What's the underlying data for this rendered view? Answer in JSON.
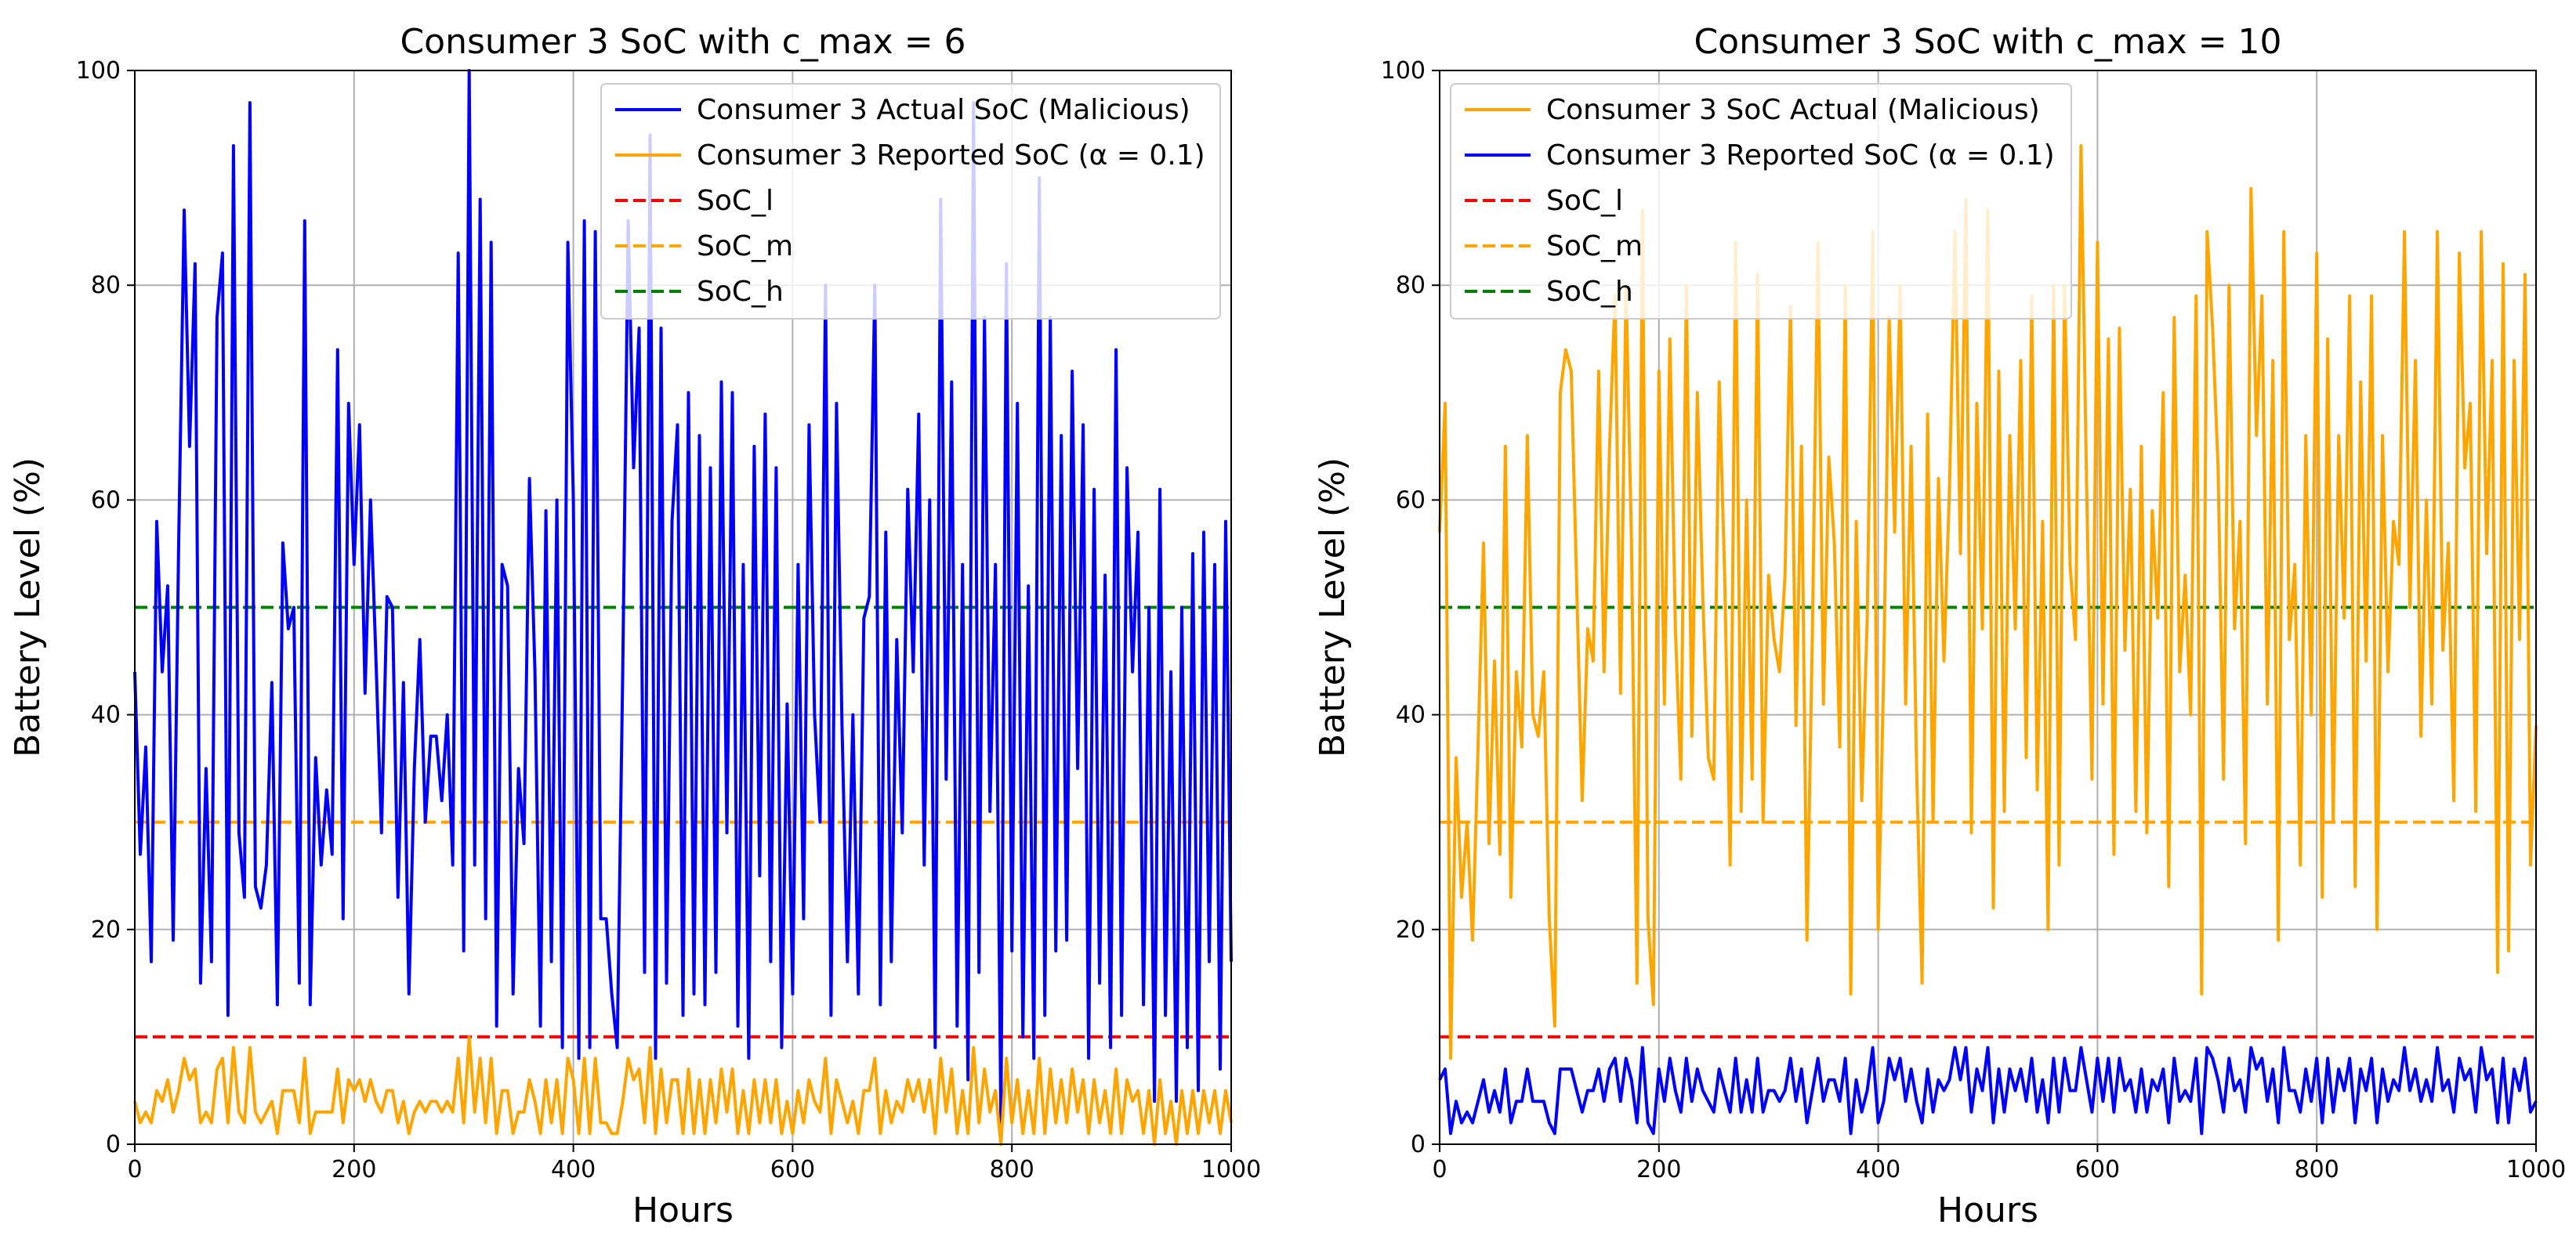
{
  "chart_data": [
    {
      "type": "line",
      "title": "Consumer 3 SoC with c_max = 6",
      "xlabel": "Hours",
      "ylabel": "Battery Level (%)",
      "xlim": [
        0,
        1000
      ],
      "ylim": [
        0,
        100
      ],
      "xticks": [
        0,
        200,
        400,
        600,
        800,
        1000
      ],
      "yticks": [
        0,
        20,
        40,
        60,
        80,
        100
      ],
      "grid": true,
      "legend_position": "top-right",
      "series": [
        {
          "name": "Consumer 3 Actual SoC (Malicious)",
          "color": "#0000ff",
          "style": "solid",
          "x_step": 5,
          "values": [
            44,
            27,
            37,
            17,
            58,
            44,
            52,
            19,
            56,
            87,
            65,
            82,
            15,
            35,
            17,
            77,
            83,
            12,
            93,
            29,
            23,
            97,
            24,
            22,
            26,
            43,
            13,
            56,
            48,
            50,
            15,
            86,
            13,
            36,
            26,
            33,
            27,
            74,
            21,
            69,
            54,
            67,
            42,
            60,
            45,
            29,
            51,
            50,
            23,
            43,
            14,
            35,
            47,
            30,
            38,
            38,
            32,
            40,
            26,
            83,
            18,
            100,
            26,
            88,
            21,
            84,
            11,
            54,
            52,
            14,
            35,
            28,
            62,
            44,
            11,
            59,
            17,
            60,
            9,
            84,
            60,
            8,
            86,
            9,
            85,
            21,
            21,
            14,
            9,
            44,
            86,
            63,
            76,
            16,
            94,
            8,
            76,
            15,
            58,
            67,
            12,
            70,
            14,
            66,
            13,
            63,
            16,
            71,
            29,
            70,
            11,
            54,
            8,
            65,
            25,
            68,
            17,
            63,
            9,
            41,
            14,
            54,
            21,
            67,
            40,
            30,
            80,
            12,
            69,
            39,
            17,
            40,
            14,
            49,
            51,
            80,
            13,
            57,
            17,
            47,
            29,
            61,
            44,
            68,
            26,
            60,
            9,
            88,
            34,
            71,
            11,
            54,
            6,
            97,
            16,
            77,
            31,
            54,
            2,
            82,
            18,
            69,
            10,
            52,
            8,
            90,
            12,
            77,
            18,
            66,
            19,
            72,
            35,
            67,
            8,
            61,
            15,
            53,
            9,
            74,
            12,
            63,
            44,
            57,
            13,
            50,
            4,
            61,
            12,
            44,
            4,
            50,
            9,
            55,
            5,
            57,
            17,
            54,
            7,
            58,
            17
          ]
        },
        {
          "name": "Consumer 3 Reported SoC (α = 0.1)",
          "color": "#ffa500",
          "style": "solid",
          "x_step": 5,
          "values": [
            4,
            2,
            3,
            2,
            5,
            4,
            6,
            3,
            5,
            8,
            6,
            7,
            2,
            3,
            2,
            7,
            8,
            2,
            9,
            3,
            2,
            9,
            3,
            2,
            3,
            4,
            1,
            5,
            5,
            5,
            2,
            8,
            1,
            3,
            3,
            3,
            3,
            7,
            2,
            6,
            5,
            6,
            4,
            6,
            4,
            3,
            5,
            5,
            2,
            4,
            1,
            3,
            4,
            3,
            4,
            4,
            3,
            4,
            3,
            8,
            2,
            10,
            3,
            8,
            2,
            8,
            1,
            5,
            5,
            1,
            3,
            3,
            6,
            4,
            1,
            6,
            2,
            6,
            1,
            8,
            6,
            1,
            8,
            1,
            8,
            2,
            2,
            1,
            1,
            4,
            8,
            6,
            7,
            2,
            9,
            1,
            7,
            2,
            6,
            6,
            1,
            7,
            1,
            6,
            1,
            6,
            2,
            7,
            3,
            7,
            1,
            5,
            1,
            6,
            2,
            6,
            2,
            6,
            1,
            4,
            1,
            5,
            2,
            6,
            4,
            3,
            8,
            1,
            6,
            4,
            2,
            4,
            1,
            5,
            5,
            8,
            1,
            5,
            2,
            4,
            3,
            6,
            4,
            6,
            3,
            6,
            1,
            8,
            3,
            7,
            1,
            5,
            1,
            9,
            2,
            7,
            3,
            5,
            0,
            8,
            2,
            6,
            1,
            5,
            1,
            8,
            1,
            7,
            2,
            6,
            2,
            7,
            3,
            6,
            1,
            6,
            2,
            5,
            1,
            7,
            1,
            6,
            4,
            5,
            1,
            5,
            0,
            6,
            1,
            4,
            0,
            5,
            1,
            5,
            1,
            5,
            2,
            5,
            1,
            5,
            2
          ]
        },
        {
          "name": "SoC_l",
          "color": "#ff0000",
          "style": "dashed",
          "constant": 10
        },
        {
          "name": "SoC_m",
          "color": "#ffa500",
          "style": "dashed",
          "constant": 30
        },
        {
          "name": "SoC_h",
          "color": "#008000",
          "style": "dashed",
          "constant": 50
        }
      ]
    },
    {
      "type": "line",
      "title": "Consumer 3 SoC with c_max = 10",
      "xlabel": "Hours",
      "ylabel": "Battery Level (%)",
      "xlim": [
        0,
        1000
      ],
      "ylim": [
        0,
        100
      ],
      "xticks": [
        0,
        200,
        400,
        600,
        800,
        1000
      ],
      "yticks": [
        0,
        20,
        40,
        60,
        80,
        100
      ],
      "grid": true,
      "legend_position": "top-left",
      "series": [
        {
          "name": "Consumer 3 SoC Actual (Malicious)",
          "color": "#ffa500",
          "style": "solid",
          "x_step": 5,
          "values": [
            57,
            69,
            8,
            36,
            23,
            30,
            19,
            37,
            56,
            28,
            45,
            27,
            65,
            23,
            44,
            37,
            66,
            40,
            38,
            44,
            21,
            11,
            70,
            74,
            72,
            52,
            32,
            48,
            45,
            72,
            44,
            65,
            79,
            42,
            80,
            56,
            15,
            87,
            21,
            13,
            72,
            41,
            75,
            48,
            34,
            80,
            38,
            70,
            51,
            36,
            34,
            71,
            53,
            26,
            84,
            31,
            60,
            34,
            81,
            30,
            53,
            47,
            44,
            53,
            78,
            39,
            65,
            19,
            48,
            84,
            41,
            64,
            56,
            37,
            80,
            14,
            58,
            32,
            49,
            85,
            20,
            44,
            77,
            57,
            80,
            41,
            65,
            35,
            15,
            68,
            30,
            62,
            45,
            61,
            85,
            55,
            88,
            29,
            69,
            48,
            87,
            22,
            72,
            31,
            66,
            48,
            73,
            36,
            79,
            33,
            58,
            20,
            80,
            26,
            80,
            54,
            47,
            93,
            62,
            34,
            84,
            41,
            75,
            27,
            76,
            46,
            61,
            31,
            65,
            29,
            59,
            49,
            70,
            24,
            77,
            44,
            53,
            40,
            79,
            14,
            85,
            76,
            63,
            34,
            80,
            48,
            58,
            28,
            89,
            66,
            79,
            41,
            73,
            19,
            85,
            47,
            54,
            26,
            66,
            40,
            83,
            23,
            75,
            30,
            66,
            49,
            79,
            24,
            71,
            45,
            79,
            20,
            66,
            44,
            58,
            54,
            85,
            50,
            73,
            38,
            60,
            41,
            85,
            46,
            56,
            32,
            83,
            63,
            69,
            31,
            85,
            55,
            73,
            16,
            82,
            18,
            73,
            47,
            81,
            26,
            39
          ]
        },
        {
          "name": "Consumer 3 Reported SoC (α = 0.1)",
          "color": "#0000ff",
          "style": "solid",
          "x_step": 5,
          "values": [
            6,
            7,
            1,
            4,
            2,
            3,
            2,
            4,
            6,
            3,
            5,
            3,
            7,
            2,
            4,
            4,
            7,
            4,
            4,
            4,
            2,
            1,
            7,
            7,
            7,
            5,
            3,
            5,
            5,
            7,
            4,
            7,
            8,
            4,
            8,
            6,
            2,
            9,
            2,
            1,
            7,
            4,
            8,
            5,
            3,
            8,
            4,
            7,
            5,
            4,
            3,
            7,
            5,
            3,
            8,
            3,
            6,
            3,
            8,
            3,
            5,
            5,
            4,
            5,
            8,
            4,
            7,
            2,
            5,
            8,
            4,
            6,
            6,
            4,
            8,
            1,
            6,
            3,
            5,
            9,
            2,
            4,
            8,
            6,
            8,
            4,
            7,
            4,
            2,
            7,
            3,
            6,
            5,
            6,
            9,
            6,
            9,
            3,
            7,
            5,
            9,
            2,
            7,
            3,
            7,
            5,
            7,
            4,
            8,
            3,
            6,
            2,
            8,
            3,
            8,
            5,
            5,
            9,
            6,
            3,
            8,
            4,
            8,
            3,
            8,
            5,
            6,
            3,
            7,
            3,
            6,
            5,
            7,
            2,
            8,
            4,
            5,
            4,
            8,
            1,
            9,
            8,
            6,
            3,
            8,
            5,
            6,
            3,
            9,
            7,
            8,
            4,
            7,
            2,
            9,
            5,
            5,
            3,
            7,
            4,
            8,
            2,
            8,
            3,
            7,
            5,
            8,
            2,
            7,
            5,
            8,
            2,
            7,
            4,
            6,
            5,
            9,
            5,
            7,
            4,
            6,
            4,
            9,
            5,
            6,
            3,
            8,
            6,
            7,
            3,
            9,
            6,
            7,
            2,
            8,
            2,
            7,
            5,
            8,
            3,
            4
          ]
        },
        {
          "name": "SoC_l",
          "color": "#ff0000",
          "style": "dashed",
          "constant": 10
        },
        {
          "name": "SoC_m",
          "color": "#ffa500",
          "style": "dashed",
          "constant": 30
        },
        {
          "name": "SoC_h",
          "color": "#008000",
          "style": "dashed",
          "constant": 50
        }
      ]
    }
  ]
}
